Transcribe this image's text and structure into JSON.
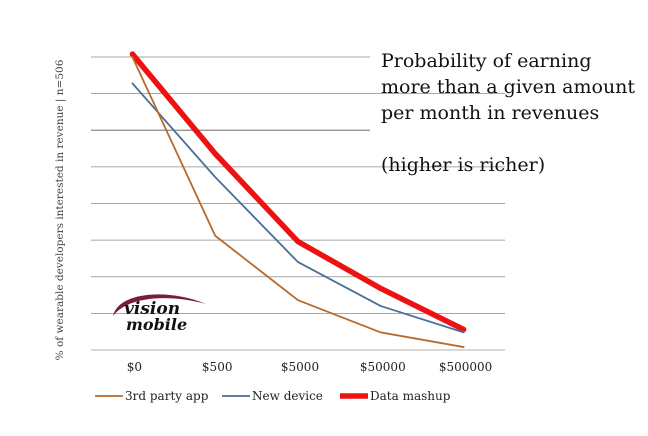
{
  "chart_data": {
    "type": "line",
    "title": "Probability of earning more than a given amount per month in revenues",
    "title_lines": [
      "Probability of earning",
      "more than a given amount",
      "per month in revenues"
    ],
    "subtitle": "(higher is richer)",
    "xlabel": "",
    "ylabel": "% of wearable developers  interested in revenue  | n=506",
    "categories": [
      "$0",
      "$500",
      "$5000",
      "$50000",
      "$500000"
    ],
    "ylim": [
      0,
      100
    ],
    "grid": true,
    "legend_position": "bottom",
    "series": [
      {
        "name": "3rd party app",
        "color": "#b86a2b",
        "values": [
          100,
          39,
          17,
          6,
          1
        ]
      },
      {
        "name": "New device",
        "color": "#4a6f96",
        "values": [
          91,
          59,
          30,
          15,
          6
        ]
      },
      {
        "name": "Data mashup",
        "color": "#ee1111",
        "values": [
          101,
          67,
          37,
          21,
          7
        ]
      }
    ]
  },
  "logo": {
    "text_line1": "vision",
    "text_line2": "mobile",
    "accent_color": "#7a1d3a"
  }
}
